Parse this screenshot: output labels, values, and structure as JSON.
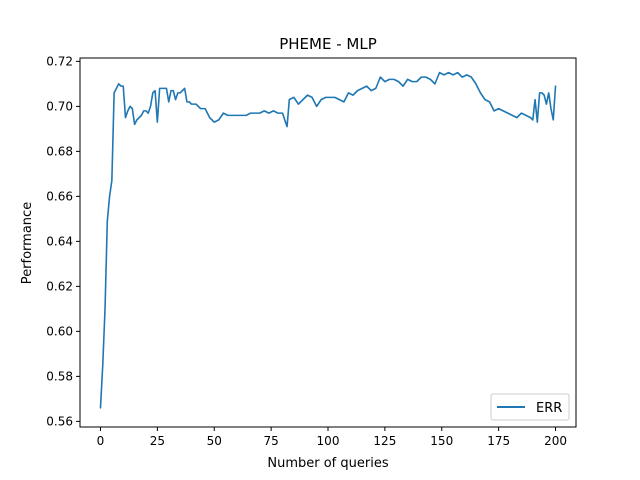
{
  "chart_data": {
    "type": "line",
    "title": "PHEME - MLP",
    "xlabel": "Number of queries",
    "ylabel": "Performance",
    "xlim": [
      -9,
      209
    ],
    "ylim": [
      0.5575,
      0.7215
    ],
    "x_ticks": [
      0,
      25,
      50,
      75,
      100,
      125,
      150,
      175,
      200
    ],
    "y_ticks": [
      0.56,
      0.58,
      0.6,
      0.62,
      0.64,
      0.66,
      0.68,
      0.7,
      0.72
    ],
    "y_tick_labels": [
      "0.56",
      "0.58",
      "0.60",
      "0.62",
      "0.64",
      "0.66",
      "0.68",
      "0.70",
      "0.72"
    ],
    "grid": false,
    "legend_position": "lower right",
    "series": [
      {
        "name": "ERR",
        "color": "#1f77b4",
        "points": [
          [
            0,
            0.566
          ],
          [
            1,
            0.585
          ],
          [
            2,
            0.61
          ],
          [
            3,
            0.649
          ],
          [
            4,
            0.66
          ],
          [
            5,
            0.667
          ],
          [
            6,
            0.706
          ],
          [
            7,
            0.708
          ],
          [
            8,
            0.71
          ],
          [
            9,
            0.709
          ],
          [
            10,
            0.709
          ],
          [
            11,
            0.695
          ],
          [
            12,
            0.698
          ],
          [
            13,
            0.7
          ],
          [
            14,
            0.699
          ],
          [
            15,
            0.692
          ],
          [
            16,
            0.694
          ],
          [
            17,
            0.695
          ],
          [
            18,
            0.696
          ],
          [
            19,
            0.698
          ],
          [
            20,
            0.698
          ],
          [
            21,
            0.697
          ],
          [
            22,
            0.7
          ],
          [
            23,
            0.706
          ],
          [
            24,
            0.707
          ],
          [
            25,
            0.693
          ],
          [
            26,
            0.708
          ],
          [
            27,
            0.708
          ],
          [
            28,
            0.708
          ],
          [
            29,
            0.708
          ],
          [
            30,
            0.702
          ],
          [
            31,
            0.707
          ],
          [
            32,
            0.707
          ],
          [
            33,
            0.703
          ],
          [
            34,
            0.706
          ],
          [
            35,
            0.706
          ],
          [
            36,
            0.707
          ],
          [
            37,
            0.708
          ],
          [
            38,
            0.702
          ],
          [
            39,
            0.702
          ],
          [
            40,
            0.701
          ],
          [
            42,
            0.701
          ],
          [
            44,
            0.699
          ],
          [
            46,
            0.699
          ],
          [
            48,
            0.695
          ],
          [
            50,
            0.693
          ],
          [
            52,
            0.694
          ],
          [
            54,
            0.697
          ],
          [
            56,
            0.696
          ],
          [
            58,
            0.696
          ],
          [
            60,
            0.696
          ],
          [
            62,
            0.696
          ],
          [
            64,
            0.696
          ],
          [
            66,
            0.697
          ],
          [
            68,
            0.697
          ],
          [
            70,
            0.697
          ],
          [
            72,
            0.698
          ],
          [
            74,
            0.697
          ],
          [
            76,
            0.698
          ],
          [
            78,
            0.697
          ],
          [
            80,
            0.697
          ],
          [
            82,
            0.691
          ],
          [
            83,
            0.703
          ],
          [
            85,
            0.704
          ],
          [
            87,
            0.701
          ],
          [
            89,
            0.703
          ],
          [
            91,
            0.705
          ],
          [
            93,
            0.704
          ],
          [
            95,
            0.7
          ],
          [
            97,
            0.703
          ],
          [
            99,
            0.704
          ],
          [
            101,
            0.704
          ],
          [
            103,
            0.704
          ],
          [
            105,
            0.703
          ],
          [
            107,
            0.702
          ],
          [
            109,
            0.706
          ],
          [
            111,
            0.705
          ],
          [
            113,
            0.707
          ],
          [
            115,
            0.708
          ],
          [
            117,
            0.709
          ],
          [
            119,
            0.707
          ],
          [
            121,
            0.708
          ],
          [
            123,
            0.713
          ],
          [
            125,
            0.711
          ],
          [
            127,
            0.712
          ],
          [
            129,
            0.712
          ],
          [
            131,
            0.711
          ],
          [
            133,
            0.709
          ],
          [
            135,
            0.712
          ],
          [
            137,
            0.711
          ],
          [
            139,
            0.711
          ],
          [
            141,
            0.713
          ],
          [
            143,
            0.713
          ],
          [
            145,
            0.712
          ],
          [
            147,
            0.71
          ],
          [
            149,
            0.715
          ],
          [
            151,
            0.714
          ],
          [
            153,
            0.715
          ],
          [
            155,
            0.714
          ],
          [
            157,
            0.715
          ],
          [
            159,
            0.713
          ],
          [
            161,
            0.714
          ],
          [
            163,
            0.713
          ],
          [
            165,
            0.71
          ],
          [
            167,
            0.706
          ],
          [
            169,
            0.703
          ],
          [
            171,
            0.702
          ],
          [
            173,
            0.698
          ],
          [
            175,
            0.699
          ],
          [
            177,
            0.698
          ],
          [
            179,
            0.697
          ],
          [
            181,
            0.696
          ],
          [
            183,
            0.695
          ],
          [
            185,
            0.697
          ],
          [
            187,
            0.696
          ],
          [
            189,
            0.695
          ],
          [
            190,
            0.694
          ],
          [
            191,
            0.703
          ],
          [
            192,
            0.693
          ],
          [
            193,
            0.706
          ],
          [
            194,
            0.706
          ],
          [
            195,
            0.705
          ],
          [
            196,
            0.701
          ],
          [
            197,
            0.706
          ],
          [
            198,
            0.699
          ],
          [
            199,
            0.694
          ],
          [
            200,
            0.709
          ]
        ]
      }
    ]
  }
}
